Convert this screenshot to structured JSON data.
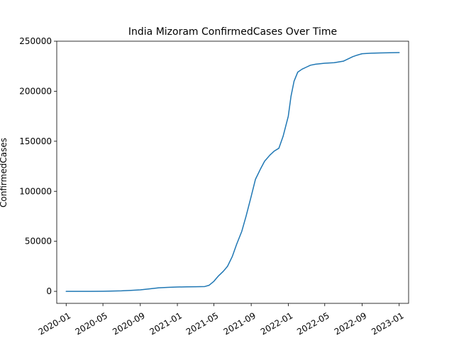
{
  "chart_data": {
    "type": "line",
    "title": "India Mizoram ConfirmedCases Over Time",
    "xlabel": "",
    "ylabel": "ConfirmedCases",
    "line_color": "#1f77b4",
    "grid": false,
    "legend": "none",
    "x_ticks": [
      "2020-01",
      "2020-05",
      "2020-09",
      "2021-01",
      "2021-05",
      "2021-09",
      "2022-01",
      "2022-05",
      "2022-09",
      "2023-01"
    ],
    "y_ticks": [
      0,
      50000,
      100000,
      150000,
      200000,
      250000
    ],
    "y_tick_labels": [
      "0",
      "50000",
      "100000",
      "150000",
      "200000",
      "250000"
    ],
    "xlim": [
      "2019-12-01",
      "2023-02-01"
    ],
    "ylim": [
      -12000,
      250000
    ],
    "series": [
      {
        "x": [
          "2020-01-01",
          "2020-03-01",
          "2020-05-01",
          "2020-07-01",
          "2020-08-01",
          "2020-09-01",
          "2020-10-01",
          "2020-11-01",
          "2020-12-01",
          "2021-01-01",
          "2021-02-01",
          "2021-03-01",
          "2021-04-01",
          "2021-04-15",
          "2021-05-01",
          "2021-05-15",
          "2021-06-01",
          "2021-06-15",
          "2021-07-01",
          "2021-07-15",
          "2021-08-01",
          "2021-08-15",
          "2021-09-01",
          "2021-09-15",
          "2021-10-01",
          "2021-10-15",
          "2021-11-01",
          "2021-11-15",
          "2021-12-01",
          "2021-12-15",
          "2022-01-01",
          "2022-01-10",
          "2022-01-20",
          "2022-02-01",
          "2022-02-15",
          "2022-03-01",
          "2022-03-15",
          "2022-04-01",
          "2022-05-01",
          "2022-06-01",
          "2022-07-01",
          "2022-07-15",
          "2022-08-01",
          "2022-08-15",
          "2022-09-01",
          "2022-10-01",
          "2022-11-01",
          "2022-12-01",
          "2023-01-01"
        ],
        "values": [
          0,
          0,
          50,
          500,
          1000,
          1500,
          2500,
          3500,
          4000,
          4300,
          4500,
          4600,
          4800,
          6000,
          10000,
          15000,
          20000,
          25000,
          35000,
          47000,
          60000,
          75000,
          95000,
          112000,
          122000,
          130000,
          136000,
          140000,
          143000,
          155000,
          175000,
          195000,
          210000,
          219000,
          222000,
          224000,
          226000,
          227000,
          228000,
          228500,
          230000,
          232000,
          234500,
          236000,
          237500,
          238000,
          238300,
          238500,
          238600
        ]
      }
    ]
  }
}
